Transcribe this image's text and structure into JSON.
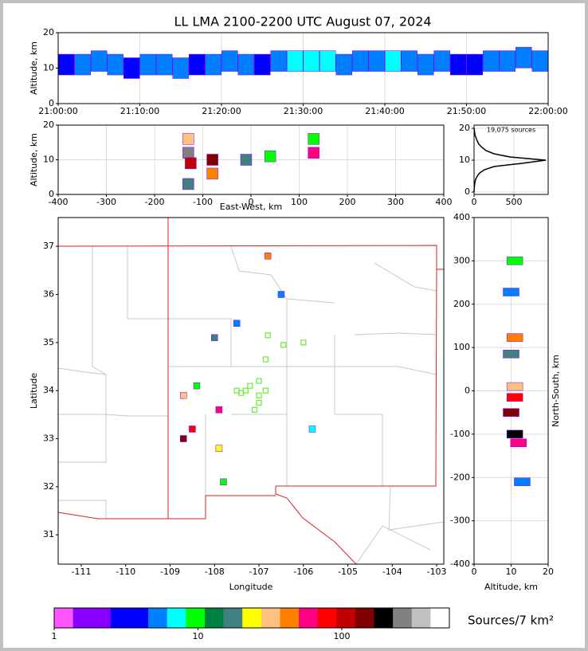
{
  "title": "LL LMA 2100-2200 UTC August 07, 2024",
  "chart_data": [
    {
      "type": "heatmap",
      "ylabel": "Altitude, km",
      "xlim": [
        0,
        60
      ],
      "ylim": [
        0,
        20
      ],
      "xticks": [
        {
          "value": 0,
          "label": "21:00:00"
        },
        {
          "value": 10,
          "label": "21:10:00"
        },
        {
          "value": 20,
          "label": "21:20:00"
        },
        {
          "value": 30,
          "label": "21:30:00"
        },
        {
          "value": 40,
          "label": "21:40:00"
        },
        {
          "value": 50,
          "label": "21:50:00"
        },
        {
          "value": 60,
          "label": "22:00:00"
        }
      ],
      "yticks": [
        0,
        10,
        20
      ],
      "grid": true,
      "x": [
        1,
        3,
        5,
        7,
        9,
        11,
        13,
        15,
        17,
        19,
        21,
        23,
        25,
        27,
        29,
        31,
        33,
        35,
        37,
        39,
        41,
        43,
        45,
        47,
        49,
        51,
        53,
        55,
        57,
        59
      ],
      "y": [
        11,
        11,
        12,
        11,
        10,
        11,
        11,
        10,
        11,
        11,
        12,
        11,
        11,
        12,
        12,
        12,
        12,
        11,
        12,
        12,
        12,
        12,
        11,
        12,
        11,
        11,
        12,
        12,
        13,
        12
      ],
      "values": [
        4,
        5,
        6,
        5,
        4,
        5,
        6,
        5,
        4,
        5,
        6,
        5,
        4,
        6,
        7,
        8,
        7,
        6,
        5,
        6,
        7,
        6,
        5,
        5,
        4,
        4,
        5,
        6,
        6,
        5
      ]
    },
    {
      "type": "heatmap",
      "ylabel": "Altitude, km",
      "xlabel": "East-West, km",
      "xlim": [
        -400,
        400
      ],
      "ylim": [
        0,
        20
      ],
      "xticks": [
        -400,
        -300,
        -200,
        -100,
        0,
        100,
        200,
        300,
        400
      ],
      "yticks": [
        0,
        10,
        20
      ],
      "grid": true,
      "x": [
        -130,
        -130,
        -125,
        -130,
        -80,
        -80,
        -10,
        40,
        130,
        130
      ],
      "y": [
        16,
        12,
        9,
        3,
        10,
        6,
        10,
        11,
        12,
        16
      ],
      "values": [
        30,
        300,
        100,
        20,
        150,
        40,
        20,
        10,
        60,
        10
      ]
    },
    {
      "type": "line",
      "annotation": "19,075 sources",
      "xlim": [
        0,
        930
      ],
      "ylim": [
        -0.75,
        21
      ],
      "xticks": [
        0,
        500
      ],
      "yticks": [
        0,
        10,
        20
      ],
      "grid": true,
      "x": [
        0,
        2,
        5,
        10,
        20,
        40,
        70,
        130,
        250,
        600,
        900,
        450,
        250,
        150,
        100,
        60,
        40,
        25,
        10,
        5,
        2
      ],
      "y": [
        0,
        1,
        2,
        3,
        4,
        5,
        6,
        7,
        8,
        9,
        10,
        11,
        12,
        13,
        14,
        15,
        16,
        17,
        18,
        19,
        20
      ]
    },
    {
      "type": "map",
      "xlabel": "Longitude",
      "ylabel": "Latitude",
      "xlim": [
        -111.52,
        -102.84
      ],
      "ylim": [
        30.39,
        37.6
      ],
      "xticks": [
        -111,
        -110,
        -109,
        -108,
        -107,
        -106,
        -105,
        -104,
        -103
      ],
      "yticks": [
        31,
        32,
        33,
        34,
        35,
        36,
        37
      ],
      "x": [
        -106.8,
        -108.7,
        -108.5,
        -107.9,
        -108.7,
        -107.9,
        -107.8,
        -108.0,
        -107.5,
        -105.8,
        -106.5,
        -108.4
      ],
      "y": [
        36.8,
        33.0,
        33.2,
        33.6,
        33.9,
        32.8,
        32.1,
        35.1,
        35.4,
        33.2,
        36.0,
        34.1
      ],
      "values": [
        40,
        150,
        80,
        60,
        30,
        25,
        10,
        20,
        5,
        8,
        5,
        10
      ],
      "stations": {
        "color": "#66ee33",
        "x": [
          -106.8,
          -106.45,
          -106.0,
          -106.85,
          -107.0,
          -107.2,
          -107.3,
          -107.4,
          -107.5,
          -106.85,
          -107.0,
          -107.0,
          -107.1
        ],
        "y": [
          35.15,
          34.95,
          35.0,
          34.65,
          34.2,
          34.1,
          34.0,
          33.95,
          34.0,
          34.0,
          33.9,
          33.75,
          33.6
        ]
      }
    },
    {
      "type": "heatmap",
      "xlabel": "Altitude, km",
      "ylabel": "North-South, km",
      "xlim": [
        0,
        20
      ],
      "ylim": [
        -400,
        400
      ],
      "xticks": [
        0,
        10,
        20
      ],
      "yticks": [
        -400,
        -300,
        -200,
        -100,
        0,
        100,
        200,
        300,
        400
      ],
      "grid": true,
      "x": [
        11,
        10,
        11,
        10,
        11,
        11,
        10,
        11,
        12,
        13
      ],
      "y": [
        300,
        228,
        123,
        85,
        10,
        -15,
        -50,
        -100,
        -120,
        -210
      ],
      "values": [
        10,
        5,
        40,
        20,
        30,
        80,
        150,
        200,
        60,
        5
      ]
    },
    {
      "type": "colorbar",
      "label": "Sources/7 km²",
      "log": true,
      "clim": [
        1,
        560
      ],
      "xticks": [
        1,
        10,
        100
      ],
      "colors": [
        "#ff55ff",
        "#8800ff",
        "#8800ff",
        "#0000ff",
        "#0000ff",
        "#0080ff",
        "#00ffff",
        "#00ff00",
        "#008040",
        "#408080",
        "#ffff00",
        "#ffc080",
        "#ff8000",
        "#ff0080",
        "#ff0000",
        "#c00000",
        "#800000",
        "#000000",
        "#808080",
        "#c0c0c0",
        "#ffffff"
      ]
    }
  ]
}
